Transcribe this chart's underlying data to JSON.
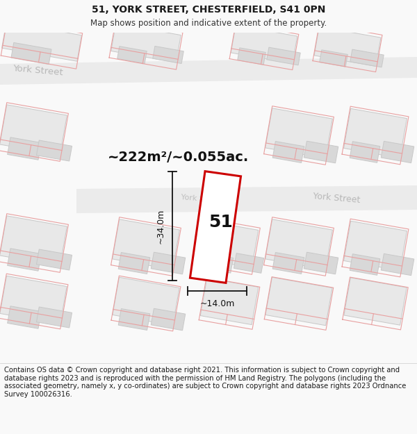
{
  "title_line1": "51, YORK STREET, CHESTERFIELD, S41 0PN",
  "title_line2": "Map shows position and indicative extent of the property.",
  "area_text": "~222m²/~0.055ac.",
  "dim_height": "~34.0m",
  "dim_width": "~14.0m",
  "label_number": "51",
  "footer_text": "Contains OS data © Crown copyright and database right 2021. This information is subject to Crown copyright and database rights 2023 and is reproduced with the permission of HM Land Registry. The polygons (including the associated geometry, namely x, y co-ordinates) are subject to Crown copyright and database rights 2023 Ordnance Survey 100026316.",
  "bg_color": "#f9f9f9",
  "map_bg": "#ffffff",
  "building_fill": "#e8e8e8",
  "building_fill2": "#d8d8d8",
  "building_edge": "#c8c8c8",
  "pink_color": "#e8a0a0",
  "red_color": "#cc0000",
  "street_fill": "#ebebeb",
  "street_label_color": "#b8b8b8",
  "title_fontsize": 10,
  "subtitle_fontsize": 8.5,
  "footer_fontsize": 7.2,
  "area_fontsize": 14,
  "dim_fontsize": 9,
  "num_fontsize": 18
}
